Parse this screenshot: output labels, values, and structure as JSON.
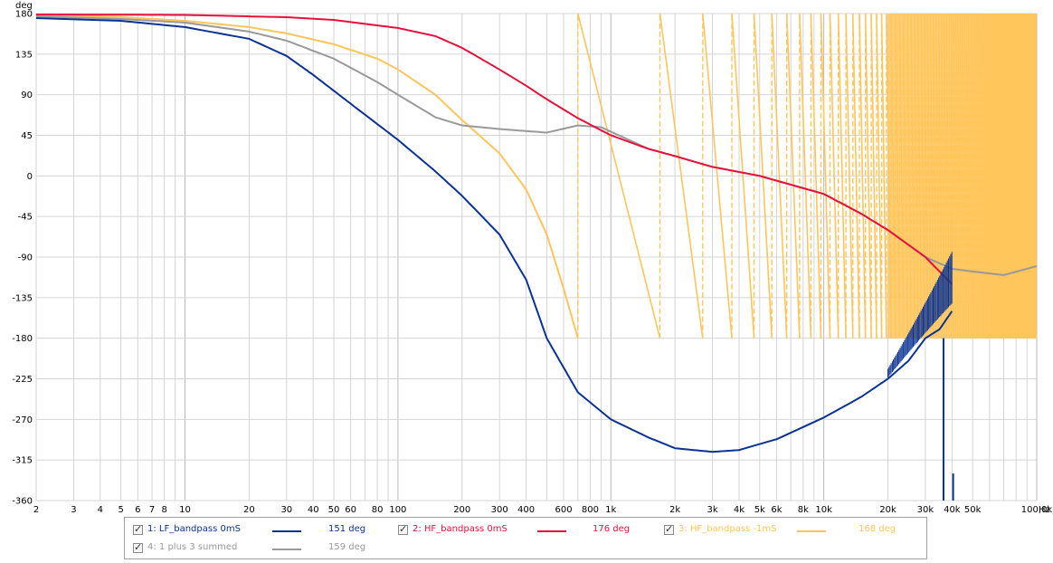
{
  "chart_data": {
    "type": "line",
    "ylabel": "deg",
    "xunit": "Hz",
    "xscale": "log",
    "xlim": [
      2,
      100000
    ],
    "ylim": [
      -360,
      180
    ],
    "grid": true,
    "ytick_labels": [
      "180",
      "135",
      "90",
      "45",
      "0",
      "-45",
      "-90",
      "-135",
      "-180",
      "-225",
      "-270",
      "-315",
      "-360"
    ],
    "yticks": [
      180,
      135,
      90,
      45,
      0,
      -45,
      -90,
      -135,
      -180,
      -225,
      -270,
      -315,
      -360
    ],
    "xticks": [
      {
        "v": 2,
        "label": "2"
      },
      {
        "v": 3,
        "label": "3"
      },
      {
        "v": 4,
        "label": "4"
      },
      {
        "v": 5,
        "label": "5"
      },
      {
        "v": 6,
        "label": "6"
      },
      {
        "v": 7,
        "label": "7"
      },
      {
        "v": 8,
        "label": "8"
      },
      {
        "v": 10,
        "label": "10"
      },
      {
        "v": 20,
        "label": "20"
      },
      {
        "v": 30,
        "label": "30"
      },
      {
        "v": 40,
        "label": "40"
      },
      {
        "v": 50,
        "label": "50"
      },
      {
        "v": 60,
        "label": "60"
      },
      {
        "v": 80,
        "label": "80"
      },
      {
        "v": 100,
        "label": "100"
      },
      {
        "v": 200,
        "label": "200"
      },
      {
        "v": 300,
        "label": "300"
      },
      {
        "v": 400,
        "label": "400"
      },
      {
        "v": 600,
        "label": "600"
      },
      {
        "v": 800,
        "label": "800"
      },
      {
        "v": 1000,
        "label": "1k"
      },
      {
        "v": 2000,
        "label": "2k"
      },
      {
        "v": 3000,
        "label": "3k"
      },
      {
        "v": 4000,
        "label": "4k"
      },
      {
        "v": 5000,
        "label": "5k"
      },
      {
        "v": 6000,
        "label": "6k"
      },
      {
        "v": 8000,
        "label": "8k"
      },
      {
        "v": 10000,
        "label": "10k"
      },
      {
        "v": 20000,
        "label": "20k"
      },
      {
        "v": 30000,
        "label": "30k"
      },
      {
        "v": 40000,
        "label": "40k"
      },
      {
        "v": 50000,
        "label": "50k"
      },
      {
        "v": 100000,
        "label": "100,0k"
      }
    ],
    "series": [
      {
        "name": "1: LF_bandpass 0mS",
        "color": "#0a3393",
        "legend_value": "151 deg",
        "points": [
          [
            2,
            175
          ],
          [
            5,
            172
          ],
          [
            10,
            165
          ],
          [
            20,
            152
          ],
          [
            30,
            133
          ],
          [
            40,
            112
          ],
          [
            60,
            80
          ],
          [
            100,
            40
          ],
          [
            150,
            5
          ],
          [
            200,
            -22
          ],
          [
            300,
            -65
          ],
          [
            400,
            -115
          ],
          [
            500,
            -180
          ],
          [
            700,
            -240
          ],
          [
            1000,
            -270
          ],
          [
            1500,
            -290
          ],
          [
            2000,
            -302
          ],
          [
            3000,
            -306
          ],
          [
            4000,
            -304
          ],
          [
            6000,
            -292
          ],
          [
            10000,
            -268
          ],
          [
            15000,
            -245
          ],
          [
            20000,
            -225
          ],
          [
            25000,
            -205
          ],
          [
            30000,
            -180
          ],
          [
            35000,
            -170
          ],
          [
            40000,
            -150
          ]
        ]
      },
      {
        "name": "2: HF_bandpass 0mS",
        "color": "#e8103b",
        "legend_value": "176 deg",
        "points": [
          [
            2,
            179
          ],
          [
            10,
            178.5
          ],
          [
            30,
            176
          ],
          [
            50,
            173
          ],
          [
            100,
            164
          ],
          [
            150,
            155
          ],
          [
            200,
            142
          ],
          [
            300,
            118
          ],
          [
            400,
            100
          ],
          [
            500,
            85
          ],
          [
            700,
            64
          ],
          [
            1000,
            45
          ],
          [
            1500,
            30
          ],
          [
            2000,
            22
          ],
          [
            3000,
            10
          ],
          [
            5000,
            0
          ],
          [
            10000,
            -20
          ],
          [
            15000,
            -42
          ],
          [
            20000,
            -60
          ],
          [
            30000,
            -90
          ],
          [
            40000,
            -120
          ]
        ]
      },
      {
        "name": "3: HF_bandpass -1mS",
        "color": "#ffc55c",
        "legend_value": "168 deg",
        "points": [
          [
            2,
            178
          ],
          [
            5,
            176
          ],
          [
            10,
            172
          ],
          [
            20,
            165
          ],
          [
            30,
            158
          ],
          [
            50,
            146
          ],
          [
            80,
            130
          ],
          [
            100,
            118
          ],
          [
            150,
            90
          ],
          [
            200,
            62
          ],
          [
            300,
            25
          ],
          [
            400,
            -15
          ],
          [
            500,
            -65
          ],
          [
            600,
            -125
          ],
          [
            700,
            -180
          ]
        ]
      },
      {
        "name": "4: 1 plus 3 summed",
        "color": "#999999",
        "legend_value": "159 deg",
        "points": [
          [
            2,
            177
          ],
          [
            5,
            174
          ],
          [
            10,
            170
          ],
          [
            20,
            160
          ],
          [
            30,
            150
          ],
          [
            50,
            130
          ],
          [
            80,
            104
          ],
          [
            100,
            90
          ],
          [
            150,
            65
          ],
          [
            200,
            56
          ],
          [
            300,
            52
          ],
          [
            500,
            48
          ],
          [
            700,
            56
          ],
          [
            900,
            54
          ],
          [
            1000,
            49
          ],
          [
            1500,
            30
          ],
          [
            2000,
            22
          ],
          [
            3000,
            10
          ],
          [
            5000,
            0
          ],
          [
            10000,
            -20
          ],
          [
            15000,
            -42
          ],
          [
            20000,
            -60
          ],
          [
            30000,
            -90
          ],
          [
            40000,
            -103
          ],
          [
            50000,
            -106
          ],
          [
            70000,
            -110
          ],
          [
            100000,
            -100
          ]
        ]
      }
    ]
  },
  "legend": {
    "items": [
      {
        "label": "1: LF_bandpass 0mS",
        "value": "151 deg",
        "color": "#0a3393"
      },
      {
        "label": "2: HF_bandpass 0mS",
        "value": "176 deg",
        "color": "#e8103b"
      },
      {
        "label": "3: HF_bandpass -1mS",
        "value": "168 deg",
        "color": "#ffc55c"
      },
      {
        "label": "4: 1 plus 3 summed",
        "value": "159 deg",
        "color": "#999999"
      }
    ]
  }
}
